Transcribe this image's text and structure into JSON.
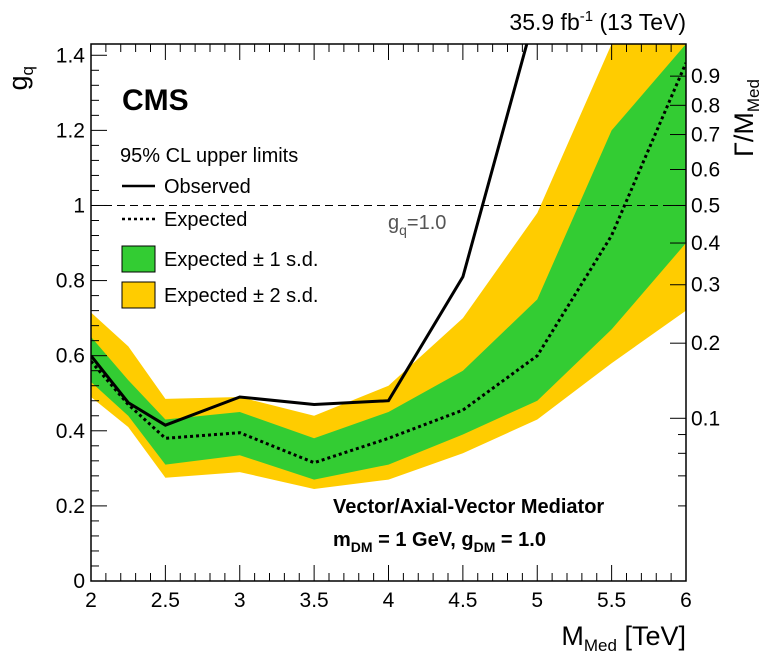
{
  "chart_data": {
    "type": "line",
    "header": {
      "lumi_value": "35.9 fb",
      "lumi_exp": "-1",
      "energy": " (13 TeV)"
    },
    "cms_label": "CMS",
    "legend_title": "95% CL upper limits",
    "xlabel": {
      "main": "M",
      "sub": "Med",
      "unit": " [TeV]"
    },
    "ylabel": {
      "main": "g",
      "sub": "q"
    },
    "y2label": {
      "main": "Γ/M",
      "sub": "Med"
    },
    "xlim": [
      2,
      6
    ],
    "ylim": [
      0,
      1.43
    ],
    "x_ticks": [
      {
        "v": 2,
        "label": "2"
      },
      {
        "v": 2.5,
        "label": "2.5"
      },
      {
        "v": 3,
        "label": "3"
      },
      {
        "v": 3.5,
        "label": "3.5"
      },
      {
        "v": 4,
        "label": "4"
      },
      {
        "v": 4.5,
        "label": "4.5"
      },
      {
        "v": 5,
        "label": "5"
      },
      {
        "v": 5.5,
        "label": "5.5"
      },
      {
        "v": 6,
        "label": "6"
      }
    ],
    "y_ticks": [
      {
        "v": 0,
        "label": "0"
      },
      {
        "v": 0.2,
        "label": "0.2"
      },
      {
        "v": 0.4,
        "label": "0.4"
      },
      {
        "v": 0.6,
        "label": "0.6"
      },
      {
        "v": 0.8,
        "label": "0.8"
      },
      {
        "v": 1,
        "label": "1"
      },
      {
        "v": 1.2,
        "label": "1.2"
      },
      {
        "v": 1.4,
        "label": "1.4"
      }
    ],
    "y2_ticks": [
      {
        "gq": 0.4333,
        "label": "0.1"
      },
      {
        "gq": 0.6333,
        "label": "0.2"
      },
      {
        "gq": 0.7889,
        "label": "0.3"
      },
      {
        "gq": 0.9,
        "label": "0.4"
      },
      {
        "gq": 1.0,
        "label": "0.5"
      },
      {
        "gq": 1.0958,
        "label": "0.6"
      },
      {
        "gq": 1.1889,
        "label": "0.7"
      },
      {
        "gq": 1.2667,
        "label": "0.8"
      },
      {
        "gq": 1.3444,
        "label": "0.9"
      }
    ],
    "reference_line": {
      "y": 1.0,
      "label_main": "g",
      "label_sub": "q",
      "label_value": "=1.0"
    },
    "series": [
      {
        "name": "Observed",
        "style": "solid",
        "color": "#000000",
        "points": [
          [
            2,
            0.6
          ],
          [
            2.25,
            0.475
          ],
          [
            2.5,
            0.415
          ],
          [
            3,
            0.49
          ],
          [
            3.5,
            0.47
          ],
          [
            4,
            0.48
          ],
          [
            4.5,
            0.81
          ],
          [
            4.93,
            1.43
          ]
        ]
      },
      {
        "name": "Expected",
        "style": "dotted",
        "color": "#000000",
        "points": [
          [
            2,
            0.585
          ],
          [
            2.25,
            0.47
          ],
          [
            2.5,
            0.38
          ],
          [
            3,
            0.395
          ],
          [
            3.5,
            0.315
          ],
          [
            4,
            0.38
          ],
          [
            4.5,
            0.455
          ],
          [
            5,
            0.6
          ],
          [
            5.5,
            0.92
          ],
          [
            6,
            1.38
          ]
        ]
      }
    ],
    "bands": [
      {
        "name": "Expected ± 2 s.d.",
        "color": "#ffcc00",
        "x": [
          2,
          2.25,
          2.5,
          3,
          3.5,
          4,
          4.5,
          5,
          5.5,
          6
        ],
        "lower": [
          0.49,
          0.41,
          0.275,
          0.29,
          0.245,
          0.27,
          0.34,
          0.43,
          0.58,
          0.72
        ],
        "upper": [
          0.715,
          0.625,
          0.485,
          0.49,
          0.44,
          0.52,
          0.7,
          0.98,
          1.43,
          1.43
        ]
      },
      {
        "name": "Expected ± 1 s.d.",
        "color": "#33cc33",
        "x": [
          2,
          2.25,
          2.5,
          3,
          3.5,
          4,
          4.5,
          5,
          5.5,
          6
        ],
        "lower": [
          0.53,
          0.44,
          0.31,
          0.335,
          0.27,
          0.31,
          0.39,
          0.48,
          0.67,
          0.9
        ],
        "upper": [
          0.65,
          0.535,
          0.43,
          0.45,
          0.38,
          0.45,
          0.56,
          0.75,
          1.2,
          1.43
        ]
      }
    ],
    "legend": [
      {
        "key": "observed",
        "label": "Observed"
      },
      {
        "key": "expected",
        "label": "Expected"
      },
      {
        "key": "band1",
        "label": "Expected ± 1 s.d."
      },
      {
        "key": "band2",
        "label": "Expected ± 2 s.d."
      }
    ],
    "annotation": {
      "line1": "Vector/Axial-Vector Mediator",
      "line2_a": "m",
      "line2_a_sub": "DM",
      "line2_b": " = 1 GeV, g",
      "line2_b_sub": "DM",
      "line2_c": " = 1.0"
    },
    "colors": {
      "band1": "#33cc33",
      "band2": "#ffcc00",
      "line": "#000000"
    }
  }
}
